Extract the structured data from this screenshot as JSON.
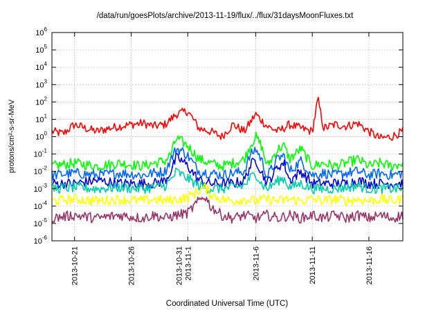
{
  "chart_data": {
    "type": "line",
    "title": "/data/run/goesPlots/archive/2013-11-19/flux/../flux/31daysMoonFluxes.txt",
    "xlabel": "Coordinated Universal Time (UTC)",
    "ylabel": "protons/cm²-s-sr-MeV",
    "yscale": "log",
    "ylim": [
      1e-06,
      1000000.0
    ],
    "xlim_days_from_2013_10_19": [
      0,
      31
    ],
    "grid": true,
    "legend": "none",
    "x_ticks": [
      {
        "label": [
          "2013-10-21"
        ],
        "day": 2
      },
      {
        "label": [
          "2013-10-26"
        ],
        "day": 7
      },
      {
        "label": [
          "2013-10-31",
          "2013-11-1"
        ],
        "day": 12
      },
      {
        "label": [
          "2013-11-6"
        ],
        "day": 18
      },
      {
        "label": [
          "2013-11-11"
        ],
        "day": 23
      },
      {
        "label": [
          "2013-11-16"
        ],
        "day": 28
      }
    ],
    "y_ticks": [
      {
        "base": "10",
        "exp": "-6",
        "value": 1e-06
      },
      {
        "base": "10",
        "exp": "-5",
        "value": 1e-05
      },
      {
        "base": "10",
        "exp": "-4",
        "value": 0.0001
      },
      {
        "base": "10",
        "exp": "-3",
        "value": 0.001
      },
      {
        "base": "10",
        "exp": "-2",
        "value": 0.01
      },
      {
        "base": "10",
        "exp": "-1",
        "value": 0.1
      },
      {
        "base": "10",
        "exp": "0",
        "value": 1
      },
      {
        "base": "10",
        "exp": "1",
        "value": 10
      },
      {
        "base": "10",
        "exp": "2",
        "value": 100
      },
      {
        "base": "10",
        "exp": "3",
        "value": 1000
      },
      {
        "base": "10",
        "exp": "4",
        "value": 10000
      },
      {
        "base": "10",
        "exp": "5",
        "value": 100000
      },
      {
        "base": "10",
        "exp": "6",
        "value": 1000000
      }
    ],
    "series": [
      {
        "color": "#ff0000",
        "x": [
          0,
          1,
          2,
          3,
          4,
          5,
          6,
          7,
          8,
          9,
          10,
          11,
          12,
          13,
          14,
          15,
          16,
          17,
          18,
          19,
          20,
          21,
          22,
          23,
          23.5,
          24,
          25,
          26,
          27,
          28,
          29,
          30,
          31
        ],
        "y": [
          2,
          1.5,
          5,
          3,
          2,
          3,
          4,
          5,
          6,
          4,
          5,
          20,
          30,
          3,
          2,
          1,
          5,
          2,
          20,
          4,
          2,
          5,
          3,
          2,
          150,
          3,
          5,
          4,
          6,
          2,
          0.8,
          1,
          2
        ]
      },
      {
        "color": "#00ff00",
        "x": [
          0,
          2,
          4,
          6,
          8,
          9,
          10,
          10.5,
          11,
          11.5,
          12,
          13,
          14,
          15,
          16,
          17,
          17.5,
          18,
          18.5,
          19,
          20,
          20.5,
          21,
          22,
          23,
          24,
          25,
          26,
          27,
          28,
          29,
          30,
          31
        ],
        "y": [
          0.02,
          0.03,
          0.02,
          0.03,
          0.02,
          0.03,
          0.04,
          0.1,
          0.8,
          0.5,
          0.3,
          0.05,
          0.03,
          0.02,
          0.03,
          0.05,
          0.3,
          1,
          0.3,
          0.02,
          0.2,
          0.3,
          0.05,
          0.2,
          0.02,
          0.03,
          0.02,
          0.03,
          0.05,
          0.02,
          0.03,
          0.02,
          0.03
        ]
      },
      {
        "color": "#0066ff",
        "x": [
          0,
          2,
          4,
          6,
          8,
          9,
          10,
          10.5,
          11,
          11.5,
          12,
          13,
          14,
          15,
          16,
          17,
          17.5,
          18,
          18.5,
          19,
          20,
          20.5,
          21,
          22,
          23,
          24,
          25,
          26,
          27,
          28,
          29,
          30,
          31
        ],
        "y": [
          0.006,
          0.008,
          0.006,
          0.008,
          0.006,
          0.008,
          0.01,
          0.05,
          0.2,
          0.15,
          0.08,
          0.01,
          0.008,
          0.006,
          0.008,
          0.01,
          0.08,
          0.2,
          0.05,
          0.005,
          0.06,
          0.08,
          0.01,
          0.04,
          0.006,
          0.008,
          0.006,
          0.008,
          0.01,
          0.006,
          0.008,
          0.006,
          0.008
        ]
      },
      {
        "color": "#0000dd",
        "x": [
          0,
          2,
          4,
          6,
          8,
          9,
          10,
          10.5,
          11,
          11.5,
          12,
          13,
          14,
          15,
          16,
          17,
          17.5,
          18,
          18.5,
          19,
          20,
          20.5,
          21,
          22,
          23,
          24,
          25,
          26,
          27,
          28,
          29,
          30,
          31
        ],
        "y": [
          0.002,
          0.002,
          0.003,
          0.002,
          0.002,
          0.002,
          0.003,
          0.01,
          0.06,
          0.04,
          0.02,
          0.003,
          0.002,
          0.002,
          0.002,
          0.003,
          0.02,
          0.05,
          0.01,
          0.002,
          0.02,
          0.03,
          0.003,
          0.01,
          0.002,
          0.002,
          0.002,
          0.002,
          0.003,
          0.002,
          0.002,
          0.002,
          0.002
        ]
      },
      {
        "color": "#00ccaa",
        "x": [
          0,
          2,
          4,
          6,
          8,
          9,
          10,
          10.5,
          11,
          11.5,
          12,
          13,
          14,
          15,
          16,
          17,
          17.5,
          18,
          18.5,
          19,
          20,
          20.5,
          21,
          22,
          23,
          24,
          25,
          26,
          27,
          28,
          29,
          30,
          31
        ],
        "y": [
          0.001,
          0.0012,
          0.001,
          0.0012,
          0.001,
          0.0012,
          0.0015,
          0.003,
          0.01,
          0.006,
          0.004,
          0.0015,
          0.001,
          0.001,
          0.0012,
          0.0015,
          0.004,
          0.008,
          0.002,
          0.001,
          0.003,
          0.004,
          0.0012,
          0.002,
          0.001,
          0.001,
          0.001,
          0.0012,
          0.0015,
          0.001,
          0.001,
          0.001,
          0.001
        ]
      },
      {
        "color": "#ffff00",
        "x": [
          0,
          2,
          4,
          6,
          8,
          9,
          10,
          11,
          12,
          13,
          13.5,
          14,
          15,
          16,
          17,
          18,
          19,
          20,
          21,
          22,
          23,
          24,
          25,
          26,
          27,
          28,
          29,
          30,
          31
        ],
        "y": [
          0.0002,
          0.00025,
          0.0002,
          0.00025,
          0.0002,
          0.00025,
          0.0002,
          0.00025,
          0.0003,
          0.0008,
          0.0012,
          0.0005,
          0.00025,
          0.0002,
          0.00025,
          0.0002,
          0.00025,
          0.0002,
          0.00025,
          0.0002,
          0.00025,
          0.0002,
          0.00025,
          0.0002,
          0.00025,
          0.0002,
          0.00025,
          0.0002,
          0.00025
        ]
      },
      {
        "color": "#993366",
        "x": [
          0,
          2,
          4,
          6,
          8,
          9,
          10,
          11,
          12,
          13,
          13.5,
          14,
          15,
          16,
          17,
          18,
          19,
          20,
          21,
          22,
          23,
          24,
          25,
          26,
          27,
          28,
          29,
          30,
          31
        ],
        "y": [
          2e-05,
          3e-05,
          2e-05,
          3e-05,
          2e-05,
          3e-05,
          2e-05,
          3e-05,
          4e-05,
          0.0002,
          0.0004,
          0.0001,
          3e-05,
          2e-05,
          3e-05,
          2e-05,
          3e-05,
          2e-05,
          3e-05,
          2e-05,
          3e-05,
          2e-05,
          3e-05,
          2e-05,
          3e-05,
          2e-05,
          3e-05,
          2e-05,
          3e-05
        ]
      }
    ]
  }
}
